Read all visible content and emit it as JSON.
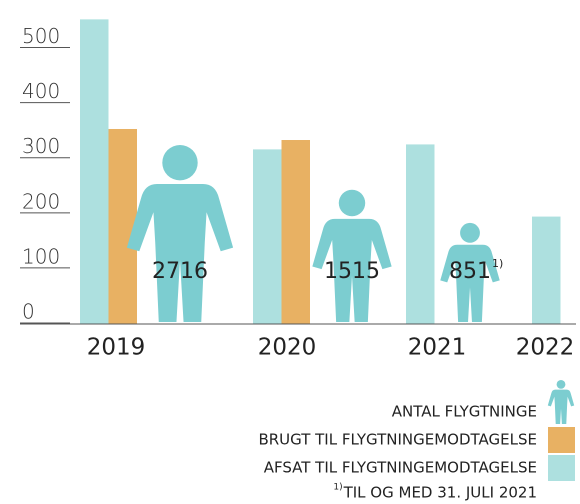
{
  "chart_data": {
    "type": "bar",
    "categories": [
      "2019",
      "2020",
      "2021",
      "2022"
    ],
    "series": [
      {
        "name": "AFSAT TIL FLYGTNINGEMODTAGELSE",
        "color": "#ade0df",
        "values": [
          553,
          317,
          326,
          195
        ]
      },
      {
        "name": "BRUGT TIL FLYGTNINGEMODTAGELSE",
        "color": "#e8b163",
        "values": [
          354,
          334,
          null,
          null
        ]
      }
    ],
    "people": {
      "name": "ANTAL FLYGTNINGE",
      "color": "#7ccdd0",
      "values": [
        2716,
        1515,
        851,
        null
      ],
      "marker": [
        null,
        null,
        "1)",
        null
      ]
    },
    "footnote_marker": "1)",
    "footnote": "TIL OG MED 31. JULI 2021",
    "ylim": [
      0,
      570
    ],
    "yticks": [
      0,
      100,
      200,
      300,
      400,
      500
    ]
  }
}
